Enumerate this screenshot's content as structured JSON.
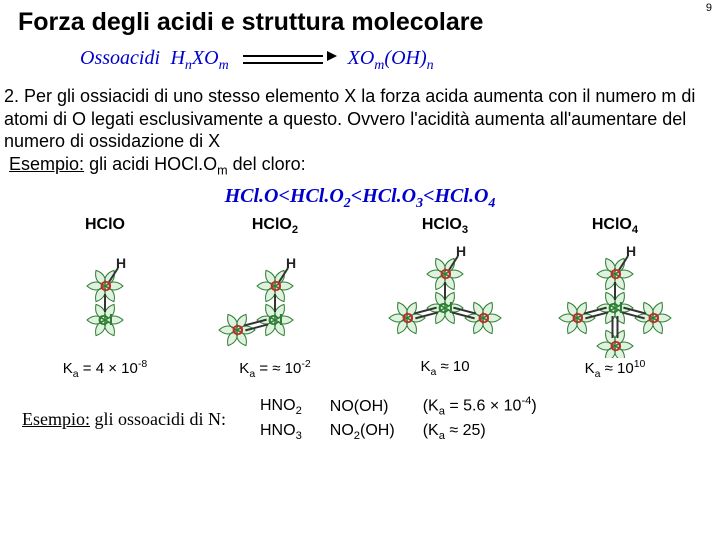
{
  "page_number": "9",
  "title": "Forza degli acidi e struttura molecolare",
  "top_formula": {
    "left_label": "Ossoacidi",
    "left_expr_html": "H<sub>n</sub>XO<sub>m</sub>",
    "right_expr_html": "XO<sub>m</sub>(OH)<sub>n</sub>",
    "label_color": "#0000cc"
  },
  "body": {
    "item_number": "2.",
    "text": "Per gli ossiacidi di uno stesso elemento X la forza acida aumenta con il numero m di atomi di O legati esclusivamente a questo. Ovvero l'acidità aumenta all'aumentare del numero di ossidazione di X",
    "esempio_label": "Esempio:",
    "esempio_text_html": "gli acidi HOCl.O<sub>m</sub> del cloro:"
  },
  "inequality_html": "HCl.O&lt;HCl.O<sub>2</sub>&lt;HCl.O<sub>3</sub>&lt;HCl.O<sub>4</sub>",
  "molecules": [
    {
      "label_html": "HClO",
      "ka_html": "K<sub>a</sub> = 4 × 10<sup>-8</sup>",
      "extra_O": 0
    },
    {
      "label_html": "HClO<sub>2</sub>",
      "ka_html": "K<sub>a</sub> = ≈ 10<sup>-2</sup>",
      "extra_O": 1
    },
    {
      "label_html": "HClO<sub>3</sub>",
      "ka_html": "K<sub>a</sub> ≈ 10",
      "extra_O": 2
    },
    {
      "label_html": "HClO<sub>4</sub>",
      "ka_html": "K<sub>a</sub> ≈ 10<sup>10</sup>",
      "extra_O": 3
    }
  ],
  "bottom": {
    "esempio_label": "Esempio:",
    "esempio_text": "gli ossoacidi di N:",
    "rows": [
      {
        "f1_html": "HNO<sub>2</sub>",
        "f2": "NO(OH)",
        "ka_html": "(K<sub>a</sub> = 5.6 × 10<sup>-4</sup>)"
      },
      {
        "f1_html": "HNO<sub>3</sub>",
        "f2_html": "NO<sub>2</sub>(OH)",
        "ka_html": "(K<sub>a</sub> ≈ 25)"
      }
    ]
  },
  "colors": {
    "blue": "#0000cc",
    "green": "#2E7D32",
    "red": "#c62828"
  }
}
